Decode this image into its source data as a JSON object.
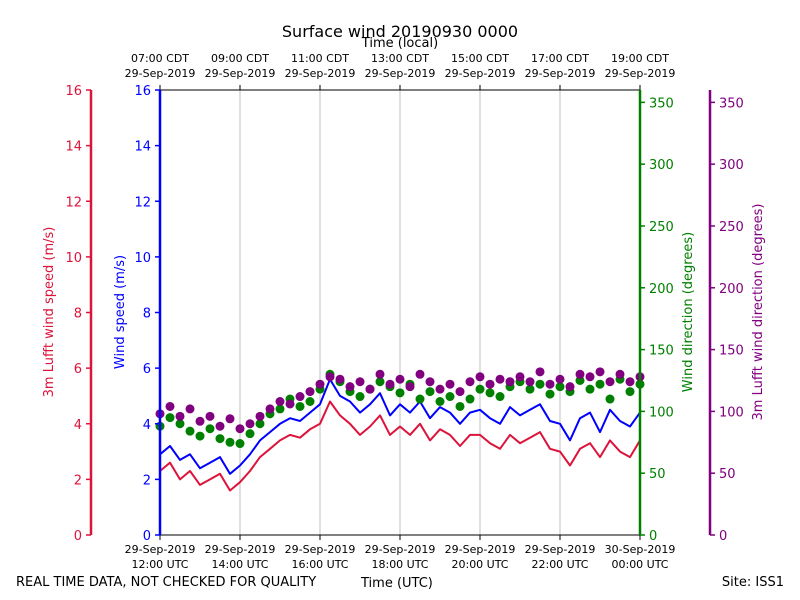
{
  "footer": {
    "quality_note": "REAL TIME DATA, NOT CHECKED FOR QUALITY",
    "xlabel_bottom": "Time (UTC)",
    "site": "Site: ISS1"
  },
  "chart_data": {
    "type": "line",
    "title": "Surface wind 20190930 0000",
    "xlabel_top": "Time (local)",
    "xlabel_bottom": "Time (UTC)",
    "x_range_hours": [
      12,
      24
    ],
    "x_ticks_utc": [
      [
        "29-Sep-2019",
        "12:00 UTC"
      ],
      [
        "29-Sep-2019",
        "14:00 UTC"
      ],
      [
        "29-Sep-2019",
        "16:00 UTC"
      ],
      [
        "29-Sep-2019",
        "18:00 UTC"
      ],
      [
        "29-Sep-2019",
        "20:00 UTC"
      ],
      [
        "29-Sep-2019",
        "22:00 UTC"
      ],
      [
        "30-Sep-2019",
        "00:00 UTC"
      ]
    ],
    "x_ticks_local": [
      [
        "07:00 CDT",
        "29-Sep-2019"
      ],
      [
        "09:00 CDT",
        "29-Sep-2019"
      ],
      [
        "11:00 CDT",
        "29-Sep-2019"
      ],
      [
        "13:00 CDT",
        "29-Sep-2019"
      ],
      [
        "15:00 CDT",
        "29-Sep-2019"
      ],
      [
        "17:00 CDT",
        "29-Sep-2019"
      ],
      [
        "19:00 CDT",
        "29-Sep-2019"
      ]
    ],
    "axes": {
      "speed_left": {
        "label": "Wind speed (m/s)",
        "ylim": [
          0,
          16
        ],
        "ticks": [
          0,
          2,
          4,
          6,
          8,
          10,
          12,
          14,
          16
        ],
        "color": "#0000ff"
      },
      "lufft_speed_left": {
        "label": "3m Lufft wind speed (m/s)",
        "ylim": [
          0,
          16
        ],
        "ticks": [
          0,
          2,
          4,
          6,
          8,
          10,
          12,
          14,
          16
        ],
        "color": "#dc143c"
      },
      "direction_right": {
        "label": "Wind direction (degrees)",
        "ylim": [
          0,
          360
        ],
        "ticks": [
          0,
          50,
          100,
          150,
          200,
          250,
          300,
          350
        ],
        "color": "#008000"
      },
      "lufft_direction_right": {
        "label": "3m Lufft wind direction (degrees)",
        "ylim": [
          0,
          360
        ],
        "ticks": [
          0,
          50,
          100,
          150,
          200,
          250,
          300,
          350
        ],
        "color": "#800080"
      }
    },
    "grid": "vertical",
    "series": [
      {
        "name": "Wind speed",
        "axis": "speed_left",
        "style": "line",
        "color": "#0000ff",
        "x": [
          12.0,
          12.25,
          12.5,
          12.75,
          13.0,
          13.25,
          13.5,
          13.75,
          14.0,
          14.25,
          14.5,
          14.75,
          15.0,
          15.25,
          15.5,
          15.75,
          16.0,
          16.25,
          16.5,
          16.75,
          17.0,
          17.25,
          17.5,
          17.75,
          18.0,
          18.25,
          18.5,
          18.75,
          19.0,
          19.25,
          19.5,
          19.75,
          20.0,
          20.25,
          20.5,
          20.75,
          21.0,
          21.25,
          21.5,
          21.75,
          22.0,
          22.25,
          22.5,
          22.75,
          23.0,
          23.25,
          23.5,
          23.75,
          24.0
        ],
        "values": [
          2.9,
          3.2,
          2.7,
          2.9,
          2.4,
          2.6,
          2.8,
          2.2,
          2.5,
          2.9,
          3.4,
          3.7,
          4.0,
          4.2,
          4.1,
          4.4,
          4.7,
          5.6,
          5.0,
          4.8,
          4.4,
          4.7,
          5.1,
          4.3,
          4.7,
          4.4,
          4.8,
          4.2,
          4.6,
          4.4,
          4.0,
          4.4,
          4.5,
          4.2,
          4.0,
          4.6,
          4.3,
          4.5,
          4.7,
          4.1,
          4.0,
          3.4,
          4.2,
          4.4,
          3.7,
          4.5,
          4.1,
          3.9,
          4.4
        ]
      },
      {
        "name": "3m Lufft wind speed",
        "axis": "lufft_speed_left",
        "style": "line",
        "color": "#dc143c",
        "x": [
          12.0,
          12.25,
          12.5,
          12.75,
          13.0,
          13.25,
          13.5,
          13.75,
          14.0,
          14.25,
          14.5,
          14.75,
          15.0,
          15.25,
          15.5,
          15.75,
          16.0,
          16.25,
          16.5,
          16.75,
          17.0,
          17.25,
          17.5,
          17.75,
          18.0,
          18.25,
          18.5,
          18.75,
          19.0,
          19.25,
          19.5,
          19.75,
          20.0,
          20.25,
          20.5,
          20.75,
          21.0,
          21.25,
          21.5,
          21.75,
          22.0,
          22.25,
          22.5,
          22.75,
          23.0,
          23.25,
          23.5,
          23.75,
          24.0
        ],
        "values": [
          2.3,
          2.6,
          2.0,
          2.3,
          1.8,
          2.0,
          2.2,
          1.6,
          1.9,
          2.3,
          2.8,
          3.1,
          3.4,
          3.6,
          3.5,
          3.8,
          4.0,
          4.8,
          4.3,
          4.0,
          3.6,
          3.9,
          4.3,
          3.6,
          3.9,
          3.6,
          4.0,
          3.4,
          3.8,
          3.6,
          3.2,
          3.6,
          3.6,
          3.3,
          3.1,
          3.6,
          3.3,
          3.5,
          3.7,
          3.1,
          3.0,
          2.5,
          3.1,
          3.3,
          2.8,
          3.4,
          3.0,
          2.8,
          3.4
        ]
      },
      {
        "name": "Wind direction",
        "axis": "direction_right",
        "style": "markers",
        "color": "#008000",
        "x": [
          12.0,
          12.25,
          12.5,
          12.75,
          13.0,
          13.25,
          13.5,
          13.75,
          14.0,
          14.25,
          14.5,
          14.75,
          15.0,
          15.25,
          15.5,
          15.75,
          16.0,
          16.25,
          16.5,
          16.75,
          17.0,
          17.25,
          17.5,
          17.75,
          18.0,
          18.25,
          18.5,
          18.75,
          19.0,
          19.25,
          19.5,
          19.75,
          20.0,
          20.25,
          20.5,
          20.75,
          21.0,
          21.25,
          21.5,
          21.75,
          22.0,
          22.25,
          22.5,
          22.75,
          23.0,
          23.25,
          23.5,
          23.75,
          24.0
        ],
        "values": [
          88,
          95,
          90,
          84,
          80,
          86,
          78,
          75,
          74,
          82,
          90,
          98,
          102,
          110,
          104,
          108,
          118,
          130,
          124,
          116,
          112,
          118,
          124,
          120,
          115,
          122,
          110,
          116,
          108,
          112,
          104,
          110,
          118,
          115,
          112,
          120,
          124,
          118,
          122,
          114,
          120,
          116,
          125,
          118,
          122,
          110,
          126,
          116,
          122
        ]
      },
      {
        "name": "3m Lufft wind direction",
        "axis": "lufft_direction_right",
        "style": "markers",
        "color": "#800080",
        "x": [
          12.0,
          12.25,
          12.5,
          12.75,
          13.0,
          13.25,
          13.5,
          13.75,
          14.0,
          14.25,
          14.5,
          14.75,
          15.0,
          15.25,
          15.5,
          15.75,
          16.0,
          16.25,
          16.5,
          16.75,
          17.0,
          17.25,
          17.5,
          17.75,
          18.0,
          18.25,
          18.5,
          18.75,
          19.0,
          19.25,
          19.5,
          19.75,
          20.0,
          20.25,
          20.5,
          20.75,
          21.0,
          21.25,
          21.5,
          21.75,
          22.0,
          22.25,
          22.5,
          22.75,
          23.0,
          23.25,
          23.5,
          23.75,
          24.0
        ],
        "values": [
          98,
          104,
          96,
          102,
          92,
          96,
          88,
          94,
          86,
          90,
          96,
          102,
          108,
          106,
          112,
          116,
          122,
          128,
          126,
          120,
          124,
          118,
          130,
          122,
          126,
          120,
          130,
          124,
          118,
          122,
          116,
          124,
          128,
          122,
          126,
          124,
          128,
          124,
          132,
          122,
          126,
          120,
          130,
          128,
          132,
          124,
          130,
          124,
          128
        ]
      }
    ]
  }
}
